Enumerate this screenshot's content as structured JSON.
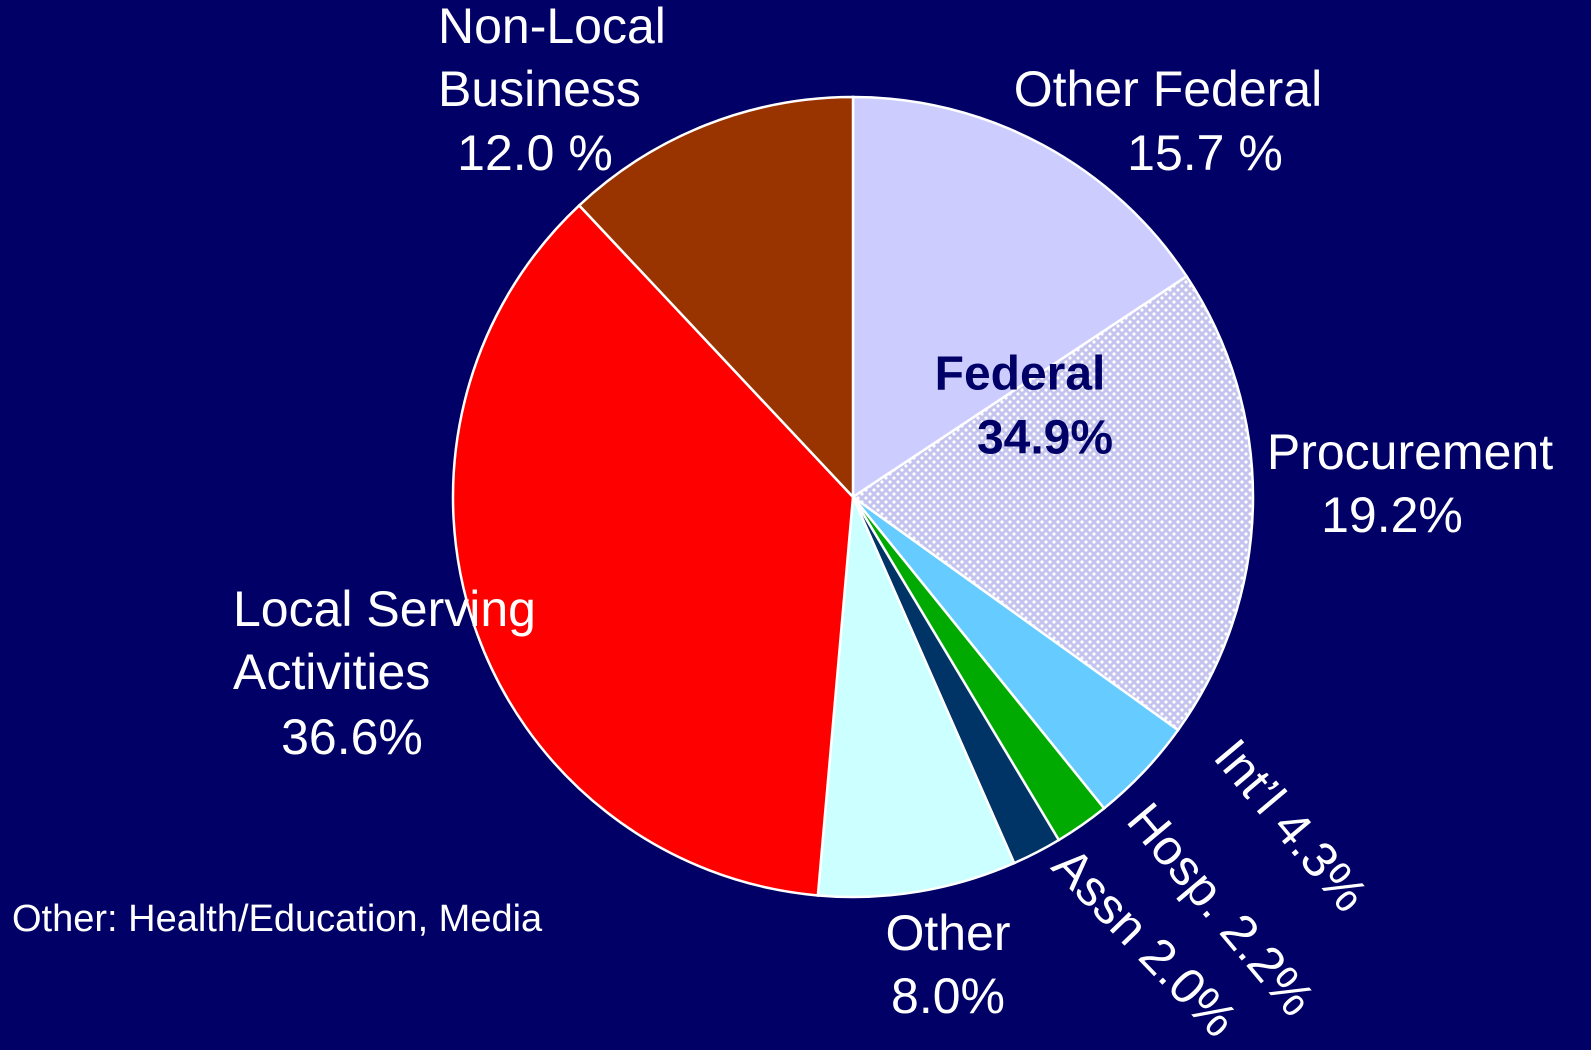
{
  "chart_data": {
    "type": "pie",
    "categories": [
      "Other Federal",
      "Procurement",
      "Int’l",
      "Hosp.",
      "Assn",
      "Other",
      "Local Serving\nActivities",
      "Non-Local\nBusiness"
    ],
    "values": [
      15.7,
      19.2,
      4.3,
      2.2,
      2.0,
      8.0,
      36.6,
      12.0
    ],
    "value_labels": [
      "15.7 %",
      "19.2%",
      "4.3%",
      "2.2%",
      "2.0%",
      "8.0%",
      "36.6%",
      "12.0 %"
    ],
    "colors": [
      "#ccccff",
      "#d4d4f6",
      "#66ccff",
      "#00aa00",
      "#003366",
      "#ccffff",
      "#ff0000",
      "#993300"
    ],
    "patterned": [
      false,
      true,
      false,
      false,
      false,
      false,
      false,
      false
    ],
    "annotation": [
      "Federal",
      "34.9%"
    ],
    "footnote": "Other: Health/Education, Media"
  }
}
